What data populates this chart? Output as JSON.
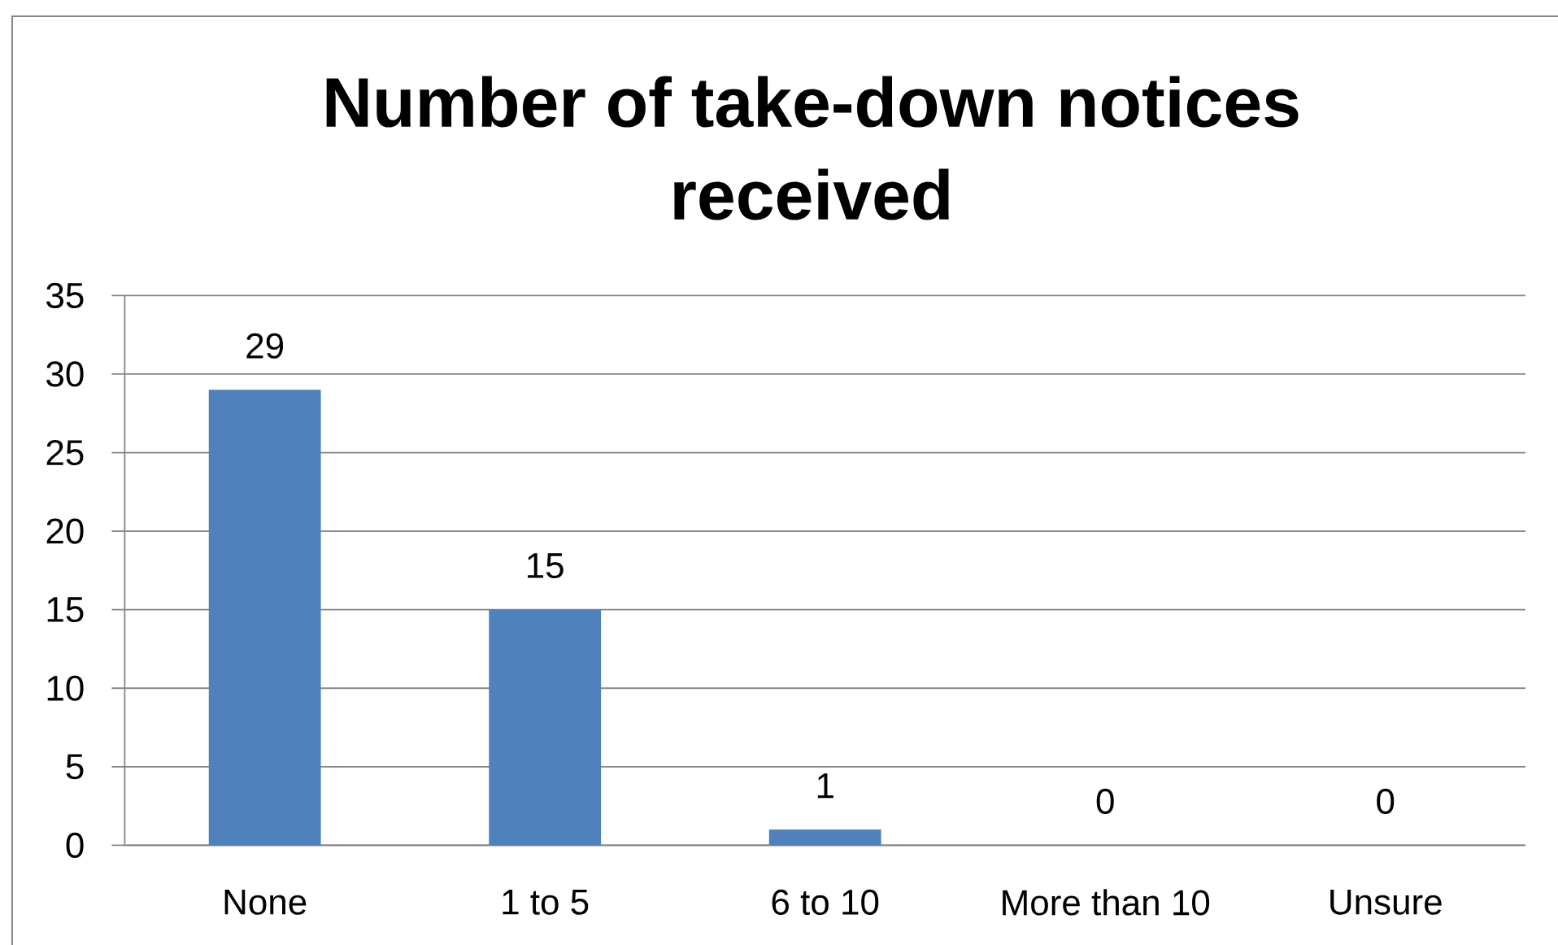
{
  "chart_data": {
    "type": "bar",
    "title": "Number of take-down notices received",
    "categories": [
      "None",
      "1 to 5",
      "6 to 10",
      "More than 10",
      "Unsure"
    ],
    "values": [
      29,
      15,
      1,
      0,
      0
    ],
    "color": "#4f81bd",
    "ylim": [
      0,
      35
    ],
    "yticks": [
      0,
      5,
      10,
      15,
      20,
      25,
      30,
      35
    ],
    "grid": "y",
    "data_labels": true
  }
}
